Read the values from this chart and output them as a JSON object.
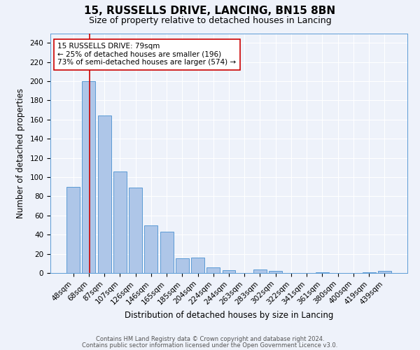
{
  "title1": "15, RUSSELLS DRIVE, LANCING, BN15 8BN",
  "title2": "Size of property relative to detached houses in Lancing",
  "xlabel": "Distribution of detached houses by size in Lancing",
  "ylabel": "Number of detached properties",
  "categories": [
    "48sqm",
    "68sqm",
    "87sqm",
    "107sqm",
    "126sqm",
    "146sqm",
    "165sqm",
    "185sqm",
    "204sqm",
    "224sqm",
    "244sqm",
    "263sqm",
    "283sqm",
    "302sqm",
    "322sqm",
    "341sqm",
    "361sqm",
    "380sqm",
    "400sqm",
    "419sqm",
    "439sqm"
  ],
  "values": [
    90,
    200,
    164,
    106,
    89,
    50,
    43,
    15,
    16,
    6,
    3,
    0,
    4,
    2,
    0,
    0,
    1,
    0,
    0,
    1,
    2
  ],
  "bar_color": "#aec6e8",
  "bar_edge_color": "#5b9bd5",
  "background_color": "#eef2fa",
  "grid_color": "#ffffff",
  "property_line_color": "#cc0000",
  "annotation_text": "15 RUSSELLS DRIVE: 79sqm\n← 25% of detached houses are smaller (196)\n73% of semi-detached houses are larger (574) →",
  "annotation_box_color": "#ffffff",
  "annotation_box_edge_color": "#cc0000",
  "ylim": [
    0,
    250
  ],
  "yticks": [
    0,
    20,
    40,
    60,
    80,
    100,
    120,
    140,
    160,
    180,
    200,
    220,
    240
  ],
  "footnote1": "Contains HM Land Registry data © Crown copyright and database right 2024.",
  "footnote2": "Contains public sector information licensed under the Open Government Licence v3.0.",
  "title1_fontsize": 11,
  "title2_fontsize": 9,
  "xlabel_fontsize": 8.5,
  "ylabel_fontsize": 8.5,
  "tick_fontsize": 7.5,
  "annot_fontsize": 7.5,
  "footnote_fontsize": 6
}
